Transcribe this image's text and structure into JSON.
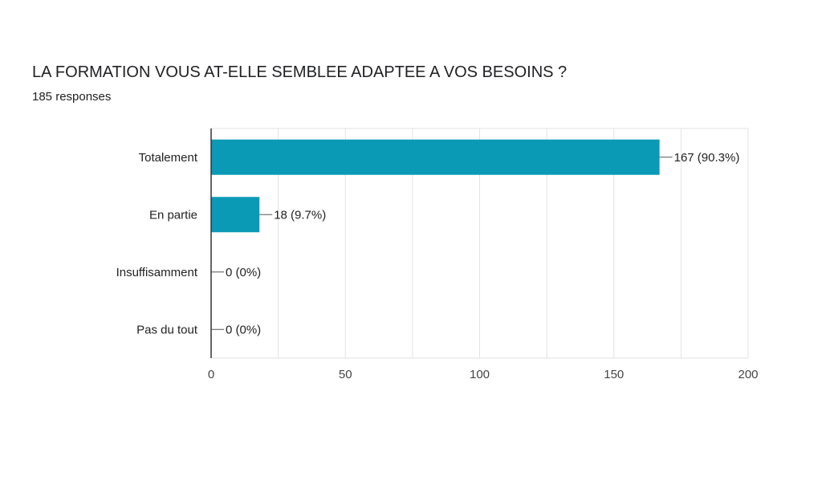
{
  "header": {
    "title": "LA FORMATION VOUS AT-ELLE SEMBLEE ADAPTEE A VOS BESOINS ?",
    "responses": "185 responses"
  },
  "colors": {
    "bar": "#0b9ab6",
    "grid": "#e3e3e3",
    "axis": "#333333",
    "leader": "#555555"
  },
  "chart_data": {
    "type": "bar",
    "orientation": "horizontal",
    "title": "LA FORMATION VOUS AT-ELLE SEMBLEE ADAPTEE A VOS BESOINS ?",
    "subtitle": "185 responses",
    "categories": [
      "Totalement",
      "En partie",
      "Insuffisamment",
      "Pas du tout"
    ],
    "values": [
      167,
      18,
      0,
      0
    ],
    "value_labels": [
      "167 (90.3%)",
      "18 (9.7%)",
      "0 (0%)",
      "0 (0%)"
    ],
    "xlim": [
      0,
      200
    ],
    "xticks": [
      0,
      50,
      100,
      150,
      200
    ],
    "xtick_labels": [
      "0",
      "50",
      "100",
      "150",
      "200"
    ],
    "minor_grid_step": 25,
    "grid": true,
    "legend": "none"
  }
}
